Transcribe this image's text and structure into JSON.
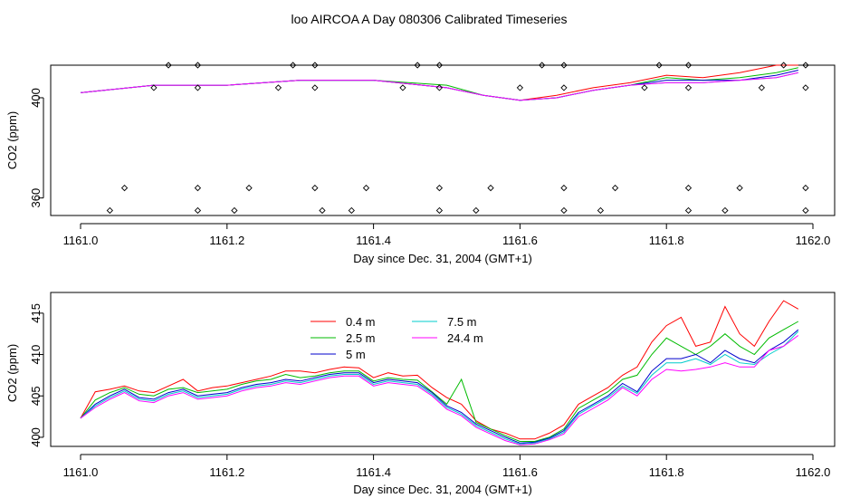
{
  "figure": {
    "title": "loo AIRCOA A  Day 080306  Calibrated Timeseries"
  },
  "chart_data": [
    {
      "type": "line",
      "xlabel": "Day since Dec. 31, 2004 (GMT+1)",
      "ylabel": "CO2 (ppm)",
      "xlim": [
        1161.0,
        1162.0
      ],
      "ylim": [
        353,
        413
      ],
      "xticks": [
        1161.0,
        1161.2,
        1161.4,
        1161.6,
        1161.8,
        1162.0
      ],
      "xtick_labels": [
        "1161.0",
        "1161.2",
        "1161.4",
        "1161.6",
        "1161.8",
        "1162.0"
      ],
      "yticks": [
        360,
        400
      ],
      "ytick_labels": [
        "360",
        "400"
      ],
      "x": [
        1161.0,
        1161.1,
        1161.2,
        1161.3,
        1161.4,
        1161.5,
        1161.55,
        1161.6,
        1161.65,
        1161.7,
        1161.75,
        1161.8,
        1161.85,
        1161.9,
        1161.95,
        1161.98
      ],
      "series": [
        {
          "name": "0.4 m",
          "color": "#ff0000",
          "values": [
            402,
            405,
            405,
            407,
            407,
            404,
            401,
            399,
            401,
            404,
            406,
            409,
            408,
            410,
            413,
            413
          ]
        },
        {
          "name": "2.5 m",
          "color": "#00bb00",
          "values": [
            402,
            405,
            405,
            407,
            407,
            405,
            401,
            399,
            400,
            403,
            405,
            408,
            407,
            408,
            410,
            412
          ]
        },
        {
          "name": "5 m",
          "color": "#0000cc",
          "values": [
            402,
            405,
            405,
            407,
            407,
            404,
            401,
            399,
            400,
            403,
            405,
            407,
            407,
            407,
            409,
            411
          ]
        },
        {
          "name": "7.5 m",
          "color": "#00cccc",
          "values": [
            402,
            405,
            405,
            407,
            407,
            404,
            401,
            399,
            400,
            403,
            405,
            406,
            406,
            407,
            408,
            410
          ]
        },
        {
          "name": "24.4 m",
          "color": "#ff00ff",
          "values": [
            402,
            405,
            405,
            407,
            407,
            404,
            401,
            399,
            400,
            403,
            405,
            406,
            406,
            407,
            408,
            410
          ]
        }
      ],
      "markers": {
        "symbol": "diamond",
        "rows": [
          {
            "y": 413,
            "x": [
              1161.12,
              1161.16,
              1161.29,
              1161.32,
              1161.46,
              1161.49,
              1161.63,
              1161.66,
              1161.79,
              1161.83,
              1161.96,
              1161.99
            ]
          },
          {
            "y": 404,
            "x": [
              1161.1,
              1161.16,
              1161.27,
              1161.32,
              1161.44,
              1161.49,
              1161.6,
              1161.66,
              1161.77,
              1161.83,
              1161.93,
              1161.99
            ]
          },
          {
            "y": 364,
            "x": [
              1161.06,
              1161.16,
              1161.23,
              1161.32,
              1161.39,
              1161.49,
              1161.56,
              1161.66,
              1161.73,
              1161.83,
              1161.9,
              1161.99
            ]
          },
          {
            "y": 355,
            "x": [
              1161.04,
              1161.16,
              1161.21,
              1161.33,
              1161.37,
              1161.49,
              1161.54,
              1161.66,
              1161.71,
              1161.83,
              1161.88,
              1161.99
            ]
          }
        ]
      }
    },
    {
      "type": "line",
      "xlabel": "Day since Dec. 31, 2004 (GMT+1)",
      "ylabel": "CO2 (ppm)",
      "xlim": [
        1161.0,
        1162.0
      ],
      "ylim": [
        398.9,
        417.5
      ],
      "xticks": [
        1161.0,
        1161.2,
        1161.4,
        1161.6,
        1161.8,
        1162.0
      ],
      "xtick_labels": [
        "1161.0",
        "1161.2",
        "1161.4",
        "1161.6",
        "1161.8",
        "1162.0"
      ],
      "yticks": [
        400,
        405,
        410,
        415
      ],
      "ytick_labels": [
        "400",
        "405",
        "410",
        "415"
      ],
      "legend": {
        "placement": "top-center",
        "columns": 2
      },
      "x": [
        1161.0,
        1161.02,
        1161.04,
        1161.06,
        1161.08,
        1161.1,
        1161.12,
        1161.14,
        1161.16,
        1161.18,
        1161.2,
        1161.22,
        1161.24,
        1161.26,
        1161.28,
        1161.3,
        1161.32,
        1161.34,
        1161.36,
        1161.38,
        1161.4,
        1161.42,
        1161.44,
        1161.46,
        1161.48,
        1161.5,
        1161.52,
        1161.54,
        1161.56,
        1161.58,
        1161.6,
        1161.62,
        1161.64,
        1161.66,
        1161.68,
        1161.7,
        1161.72,
        1161.74,
        1161.76,
        1161.78,
        1161.8,
        1161.82,
        1161.84,
        1161.86,
        1161.88,
        1161.9,
        1161.92,
        1161.94,
        1161.96,
        1161.98
      ],
      "series": [
        {
          "name": "0.4 m",
          "color": "#ff0000",
          "values": [
            402.3,
            405.5,
            405.8,
            406.2,
            405.6,
            405.4,
            406.2,
            407.0,
            405.6,
            406.0,
            406.2,
            406.6,
            407.0,
            407.4,
            408.0,
            408.0,
            407.8,
            408.2,
            408.5,
            408.4,
            407.2,
            407.8,
            407.4,
            407.5,
            406.0,
            404.8,
            404.0,
            402.0,
            401.0,
            400.5,
            399.8,
            399.8,
            400.5,
            401.5,
            404.0,
            405.0,
            406.0,
            407.5,
            408.5,
            411.5,
            413.5,
            414.5,
            411.0,
            411.5,
            415.8,
            412.5,
            411.0,
            414.0,
            416.5,
            415.5
          ]
        },
        {
          "name": "2.5 m",
          "color": "#00bb00",
          "values": [
            402.3,
            404.5,
            405.4,
            406.0,
            405.2,
            405.0,
            405.8,
            406.0,
            405.4,
            405.6,
            405.8,
            406.4,
            406.8,
            407.0,
            407.6,
            407.2,
            407.4,
            407.8,
            408.0,
            408.0,
            406.8,
            407.2,
            407.0,
            406.9,
            405.5,
            404.0,
            407.0,
            401.8,
            401.0,
            400.2,
            399.5,
            399.5,
            400.0,
            401.0,
            403.5,
            404.5,
            405.5,
            407.0,
            407.5,
            410.0,
            412.0,
            411.0,
            410.0,
            411.0,
            412.5,
            411.0,
            410.0,
            412.0,
            413.0,
            414.0
          ]
        },
        {
          "name": "5 m",
          "color": "#0000cc",
          "values": [
            402.3,
            404.0,
            405.0,
            405.8,
            404.8,
            404.6,
            405.4,
            405.8,
            405.0,
            405.2,
            405.4,
            406.0,
            406.4,
            406.6,
            407.0,
            406.8,
            407.2,
            407.6,
            407.8,
            407.8,
            406.6,
            407.0,
            406.8,
            406.6,
            405.4,
            403.8,
            403.0,
            401.6,
            400.8,
            400.0,
            399.3,
            399.4,
            399.9,
            400.8,
            403.0,
            404.0,
            405.0,
            406.5,
            405.5,
            408.0,
            409.5,
            409.5,
            410.0,
            409.0,
            410.5,
            409.5,
            409.0,
            410.5,
            411.5,
            413.0
          ]
        },
        {
          "name": "7.5 m",
          "color": "#00cccc",
          "values": [
            402.3,
            403.8,
            404.8,
            405.6,
            404.6,
            404.4,
            405.2,
            405.6,
            404.8,
            405.0,
            405.2,
            405.8,
            406.2,
            406.4,
            406.8,
            406.6,
            407.0,
            407.4,
            407.6,
            407.6,
            406.4,
            406.8,
            406.6,
            406.4,
            405.2,
            403.6,
            402.8,
            401.4,
            400.6,
            399.8,
            399.2,
            399.3,
            399.8,
            400.6,
            402.8,
            403.8,
            404.8,
            406.2,
            405.3,
            407.5,
            409.0,
            409.0,
            409.5,
            408.8,
            410.0,
            409.0,
            408.8,
            410.0,
            411.0,
            412.8
          ]
        },
        {
          "name": "24.4 m",
          "color": "#ff00ff",
          "values": [
            402.3,
            403.6,
            404.6,
            405.4,
            404.4,
            404.2,
            405.0,
            405.4,
            404.6,
            404.8,
            405.0,
            405.6,
            406.0,
            406.2,
            406.6,
            406.4,
            406.8,
            407.2,
            407.4,
            407.4,
            406.2,
            406.6,
            406.4,
            406.2,
            405.0,
            403.4,
            402.6,
            401.2,
            400.4,
            399.6,
            399.1,
            399.2,
            399.7,
            400.4,
            402.5,
            403.5,
            404.5,
            406.0,
            405.0,
            407.0,
            408.2,
            408.0,
            408.2,
            408.5,
            409.0,
            408.5,
            408.5,
            410.5,
            411.0,
            412.3
          ]
        }
      ]
    }
  ]
}
